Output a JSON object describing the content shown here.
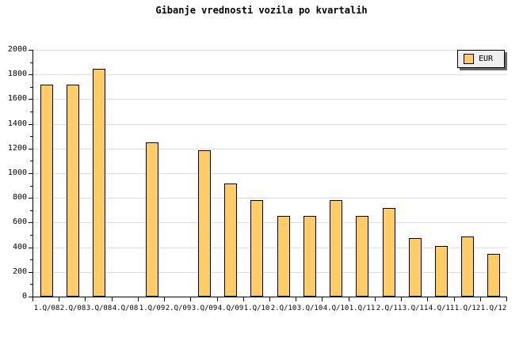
{
  "title": "Gibanje vrednosti vozila po kvartalih",
  "legend": {
    "label": "EUR"
  },
  "colors": {
    "bar_fill": "#FFCC66",
    "bar_border": "#000000",
    "grid": "#DCDCDC",
    "axis": "#000000",
    "background": "#FFFFFF",
    "legend_bg": "#EFEFEF",
    "legend_shadow": "#696969"
  },
  "chart_data": {
    "type": "bar",
    "title": "Gibanje vrednosti vozila po kvartalih",
    "categories": [
      "1.Q/08",
      "2.Q/08",
      "3.Q/08",
      "4.Q/08",
      "1.Q/09",
      "2.Q/09",
      "3.Q/09",
      "4.Q/09",
      "1.Q/10",
      "2.Q/10",
      "3.Q/10",
      "4.Q/10",
      "1.Q/11",
      "2.Q/11",
      "3.Q/11",
      "4.Q/11",
      "1.Q/12",
      "1.Q/12"
    ],
    "series": [
      {
        "name": "EUR",
        "values": [
          1715,
          1715,
          1845,
          0,
          1250,
          0,
          1185,
          915,
          785,
          655,
          655,
          785,
          655,
          715,
          475,
          410,
          485,
          345
        ]
      }
    ],
    "xlabel": "",
    "ylabel": "",
    "ylim": [
      0,
      2000
    ],
    "ytick_step": 200,
    "yminor_step": 100,
    "ytick_labels": [
      "0",
      "200",
      "400",
      "600",
      "800",
      "1000",
      "1200",
      "1400",
      "1600",
      "1800",
      "2000"
    ],
    "grid": "horizontal-major",
    "legend_position": "top-right"
  }
}
